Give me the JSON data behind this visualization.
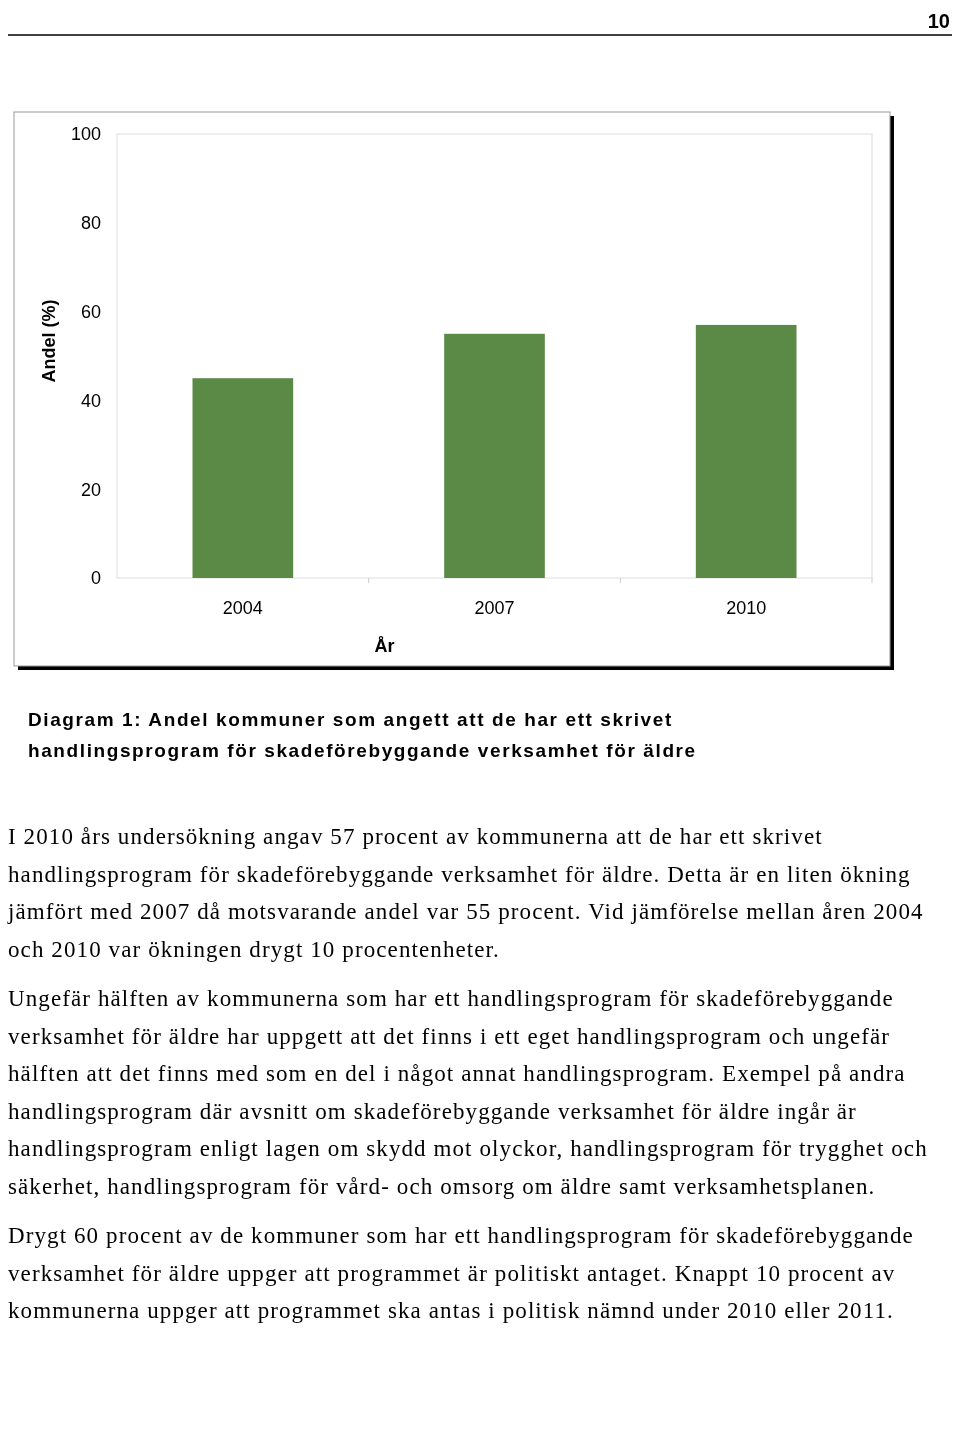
{
  "chart_data": {
    "type": "bar",
    "title": "Diagram 1: Andel kommuner som angett att de har ett skrivet handlingsprogram för skadeförebyggande verksamhet för äldre",
    "xlabel": "År",
    "ylabel": "Andel (%)",
    "categories": [
      "2004",
      "2007",
      "2010"
    ],
    "values": [
      45,
      55,
      57
    ],
    "color": "#5b8a46",
    "ylim": [
      0,
      100
    ],
    "yticks": [
      0,
      20,
      40,
      60,
      80,
      100
    ],
    "grid": false,
    "annotations": [
      "10",
      "I 2010 års undersökning angav 57 procent av kommunerna att de har ett skrivet handlingsprogram för skadeförebyggande verksamhet för äldre. Detta är en liten ökning jämfört med 2007 då motsvarande andel var 55 procent. Vid jämförelse mellan åren 2004 och 2010 var ökningen drygt 10 procentenheter.",
      "Ungefär hälften av kommunerna som har ett handlingsprogram för skadeförebyggande verksamhet för äldre har uppgett att det finns i ett eget handlingsprogram och ungefär hälften att det finns med som en del i något annat handlingsprogram. Exempel på andra handlingsprogram där avsnitt om skadeförebyggande verksamhet för äldre ingår är handlingsprogram enligt lagen om skydd mot olyckor, handlingsprogram för trygghet och säkerhet, handlingsprogram för vård- och omsorg om äldre samt verksamhetsplanen.",
      "Drygt 60 procent av de kommuner som har ett handlingsprogram för skadeförebyggande verksamhet för äldre uppger att programmet är politiskt antaget. Knappt 10 procent av kommunerna uppger att programmet ska antas i politisk nämnd under 2010 eller 2011."
    ]
  }
}
